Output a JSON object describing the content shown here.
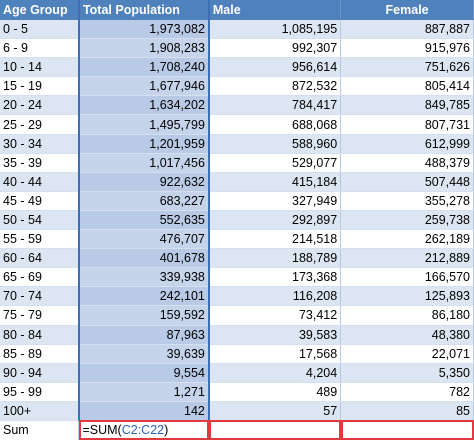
{
  "headers": [
    "Age Group",
    "Total Population",
    "Male",
    "Female"
  ],
  "rows": [
    {
      "age": "0 - 5",
      "total": "1,973,082",
      "male": "1,085,195",
      "female": "887,887"
    },
    {
      "age": "6 - 9",
      "total": "1,908,283",
      "male": "992,307",
      "female": "915,976"
    },
    {
      "age": "10 - 14",
      "total": "1,708,240",
      "male": "956,614",
      "female": "751,626"
    },
    {
      "age": "15 - 19",
      "total": "1,677,946",
      "male": "872,532",
      "female": "805,414"
    },
    {
      "age": "20 - 24",
      "total": "1,634,202",
      "male": "784,417",
      "female": "849,785"
    },
    {
      "age": "25 - 29",
      "total": "1,495,799",
      "male": "688,068",
      "female": "807,731"
    },
    {
      "age": "30 - 34",
      "total": "1,201,959",
      "male": "588,960",
      "female": "612,999"
    },
    {
      "age": "35 - 39",
      "total": "1,017,456",
      "male": "529,077",
      "female": "488,379"
    },
    {
      "age": "40 - 44",
      "total": "922,632",
      "male": "415,184",
      "female": "507,448"
    },
    {
      "age": "45 - 49",
      "total": "683,227",
      "male": "327,949",
      "female": "355,278"
    },
    {
      "age": "50 - 54",
      "total": "552,635",
      "male": "292,897",
      "female": "259,738"
    },
    {
      "age": "55 - 59",
      "total": "476,707",
      "male": "214,518",
      "female": "262,189"
    },
    {
      "age": "60 - 64",
      "total": "401,678",
      "male": "188,789",
      "female": "212,889"
    },
    {
      "age": "65 - 69",
      "total": "339,938",
      "male": "173,368",
      "female": "166,570"
    },
    {
      "age": "70 - 74",
      "total": "242,101",
      "male": "116,208",
      "female": "125,893"
    },
    {
      "age": "75 - 79",
      "total": "159,592",
      "male": "73,412",
      "female": "86,180"
    },
    {
      "age": "80 - 84",
      "total": "87,963",
      "male": "39,583",
      "female": "48,380"
    },
    {
      "age": "85 - 89",
      "total": "39,639",
      "male": "17,568",
      "female": "22,071"
    },
    {
      "age": "90 - 94",
      "total": "9,554",
      "male": "4,204",
      "female": "5,350"
    },
    {
      "age": "95 - 99",
      "total": "1,271",
      "male": "489",
      "female": "782"
    },
    {
      "age": "100+",
      "total": "142",
      "male": "57",
      "female": "85"
    }
  ],
  "sum_row": {
    "label": "Sum",
    "formula_prefix": "=SUM(",
    "formula_ref": "C2:C22",
    "formula_suffix": ")"
  },
  "colors": {
    "header_bg": "#4f81bd",
    "band": "#dce6f2",
    "selection": "#b8cae6",
    "selection_border": "#3b6fb6",
    "highlight_border": "#e0393e",
    "range_ref": "#2a63c5"
  }
}
